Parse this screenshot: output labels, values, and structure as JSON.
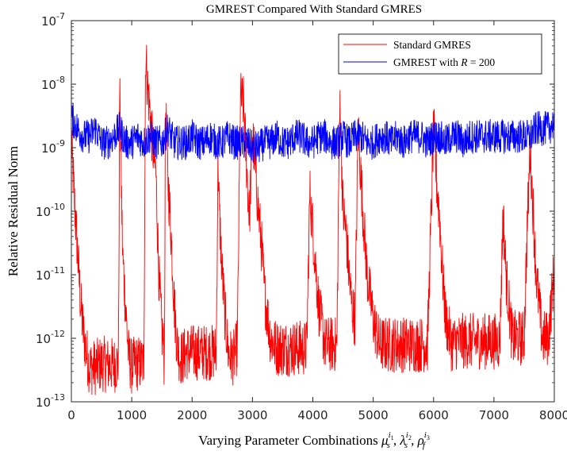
{
  "chart_data": {
    "type": "line",
    "title": "GMREST Compared With Standard GMRES",
    "xlabel": {
      "text": "Varying Parameter Combinations",
      "math": [
        {
          "base": "μ",
          "sub": "s",
          "sup": "i",
          "supsub": "1",
          "sep": ","
        },
        {
          "base": "λ",
          "sub": "s",
          "sup": "i",
          "supsub": "2",
          "sep": ","
        },
        {
          "base": "ρ",
          "sub": "f",
          "sup": "i",
          "supsub": "3",
          "sep": ""
        }
      ]
    },
    "ylabel": "Relative Residual Norm",
    "xlim": [
      0,
      8000
    ],
    "ylim_exponent": [
      -13,
      -7
    ],
    "yscale": "log",
    "grid": false,
    "legend_position": "top-right",
    "x_ticks": [
      "0",
      "1000",
      "2000",
      "3000",
      "4000",
      "5000",
      "6000",
      "7000",
      "8000"
    ],
    "x_tick_values": [
      0,
      1000,
      2000,
      3000,
      4000,
      5000,
      6000,
      7000,
      8000
    ],
    "y_ticks": [
      {
        "base": "10",
        "exp": "-13"
      },
      {
        "base": "10",
        "exp": "-12"
      },
      {
        "base": "10",
        "exp": "-11"
      },
      {
        "base": "10",
        "exp": "-10"
      },
      {
        "base": "10",
        "exp": "-9"
      },
      {
        "base": "10",
        "exp": "-8"
      },
      {
        "base": "10",
        "exp": "-7"
      }
    ],
    "y_tick_exponents": [
      -13,
      -12,
      -11,
      -10,
      -9,
      -8,
      -7
    ],
    "series": [
      {
        "name": "Standard GMRES",
        "color": "#ff0000",
        "x": [
          0,
          50,
          100,
          150,
          200,
          250,
          300,
          400,
          500,
          600,
          700,
          780,
          800,
          830,
          850,
          900,
          950,
          1000,
          1050,
          1100,
          1150,
          1200,
          1230,
          1260,
          1300,
          1350,
          1400,
          1450,
          1500,
          1520,
          1540,
          1560,
          1600,
          1650,
          1700,
          1750,
          1800,
          1850,
          1900,
          1950,
          2000,
          2100,
          2200,
          2300,
          2400,
          2430,
          2450,
          2500,
          2550,
          2600,
          2650,
          2700,
          2750,
          2800,
          2850,
          2900,
          2950,
          3000,
          3050,
          3100,
          3150,
          3200,
          3300,
          3400,
          3500,
          3600,
          3700,
          3800,
          3900,
          3950,
          4000,
          4100,
          4200,
          4300,
          4400,
          4430,
          4450,
          4500,
          4550,
          4600,
          4650,
          4700,
          4750,
          4800,
          4850,
          4900,
          5000,
          5100,
          5200,
          5300,
          5400,
          5500,
          5600,
          5700,
          5800,
          5900,
          6000,
          6020,
          6050,
          6100,
          6150,
          6200,
          6300,
          6400,
          6500,
          6600,
          6700,
          6800,
          6900,
          7000,
          7100,
          7150,
          7200,
          7300,
          7400,
          7500,
          7550,
          7600,
          7650,
          7700,
          7800,
          7900,
          8000
        ],
        "y": [
          1.2e-09,
          1.5e-10,
          2.5e-11,
          4e-12,
          1.2e-12,
          6e-13,
          3.5e-13,
          3.5e-13,
          4e-13,
          3.8e-13,
          3.8e-13,
          4e-13,
          8e-09,
          2e-10,
          2e-11,
          3e-12,
          5e-13,
          3.5e-13,
          4e-13,
          4e-13,
          4e-13,
          4e-13,
          3.5e-08,
          1e-08,
          4e-09,
          1e-09,
          4e-10,
          1e-11,
          1.2e-12,
          1e-12,
          4e-13,
          5e-09,
          3e-10,
          5e-11,
          4e-12,
          8e-13,
          5e-13,
          5e-13,
          6e-13,
          6e-13,
          6e-13,
          6e-13,
          6e-13,
          6e-13,
          6e-13,
          8e-10,
          1e-10,
          1e-11,
          2e-12,
          6e-13,
          5e-13,
          5e-13,
          8e-13,
          6e-09,
          5e-09,
          6e-10,
          8e-11,
          2e-09,
          4e-10,
          1e-10,
          3e-11,
          5e-12,
          1e-12,
          7e-13,
          7e-13,
          7e-13,
          7e-13,
          7e-13,
          7e-13,
          2e-10,
          5e-11,
          3e-12,
          8e-13,
          8e-13,
          8e-13,
          4e-10,
          6e-09,
          1e-10,
          5e-11,
          1e-11,
          3e-12,
          2e-12,
          2e-09,
          3e-10,
          5e-11,
          1e-11,
          2e-12,
          8e-13,
          8e-13,
          8e-13,
          8e-13,
          8e-13,
          8e-13,
          8e-13,
          8e-13,
          8e-13,
          2e-09,
          1e-09,
          3e-10,
          8e-11,
          1e-11,
          2e-12,
          8e-13,
          9e-13,
          9e-13,
          9e-13,
          9e-13,
          9e-13,
          9e-13,
          9e-13,
          9e-13,
          1e-10,
          1e-11,
          1e-12,
          1e-12,
          1e-12,
          5e-11,
          1e-09,
          1e-10,
          1e-11,
          1e-12,
          1e-12,
          1.2e-11
        ]
      },
      {
        "name": "GMREST with R = 200",
        "name_plain": "GMREST with",
        "name_var": "R",
        "name_rest": " = 200",
        "color": "#0000ff",
        "x": [
          0,
          100,
          200,
          300,
          400,
          500,
          600,
          700,
          800,
          900,
          1000,
          1100,
          1200,
          1300,
          1400,
          1500,
          1600,
          1700,
          1800,
          1900,
          2000,
          2100,
          2200,
          2300,
          2400,
          2500,
          2600,
          2700,
          2800,
          2900,
          3000,
          3100,
          3200,
          3300,
          3400,
          3500,
          3600,
          3700,
          3800,
          3900,
          4000,
          4100,
          4200,
          4300,
          4400,
          4500,
          4600,
          4700,
          4800,
          4900,
          5000,
          5100,
          5200,
          5300,
          5400,
          5500,
          5600,
          5700,
          5800,
          5900,
          6000,
          6100,
          6200,
          6300,
          6400,
          6500,
          6600,
          6700,
          6800,
          6900,
          7000,
          7100,
          7200,
          7300,
          7400,
          7500,
          7600,
          7700,
          7800,
          7900,
          8000
        ],
        "y": [
          3e-09,
          2e-09,
          1.5e-09,
          1.5e-09,
          2e-09,
          1.2e-09,
          1.2e-09,
          1.5e-09,
          2e-09,
          1.2e-09,
          1.2e-09,
          1.5e-09,
          1.2e-09,
          1.5e-09,
          1.2e-09,
          1.2e-09,
          2e-09,
          1.2e-09,
          1.2e-09,
          1.2e-09,
          1.5e-09,
          1.2e-09,
          1.2e-09,
          1.5e-09,
          1.2e-09,
          1.2e-09,
          1.5e-09,
          1.2e-09,
          1.2e-09,
          1.2e-09,
          1e-09,
          1e-09,
          1.2e-09,
          1.2e-09,
          1.5e-09,
          1.2e-09,
          1.2e-09,
          1.5e-09,
          1.5e-09,
          1.2e-09,
          1.2e-09,
          1.5e-09,
          1.5e-09,
          1.2e-09,
          1.2e-09,
          1.5e-09,
          1.2e-09,
          1.5e-09,
          1.5e-09,
          1.2e-09,
          1.2e-09,
          1.5e-09,
          1.5e-09,
          1.2e-09,
          1.5e-09,
          1.2e-09,
          1.5e-09,
          1.5e-09,
          1.5e-09,
          1.2e-09,
          1.5e-09,
          1.5e-09,
          1.2e-09,
          1.5e-09,
          1.5e-09,
          1.2e-09,
          1.5e-09,
          1.5e-09,
          1.5e-09,
          1.5e-09,
          1.5e-09,
          1.5e-09,
          1.5e-09,
          1.5e-09,
          1.5e-09,
          1.5e-09,
          1.5e-09,
          2e-09,
          2e-09,
          2e-09,
          2.5e-09
        ]
      }
    ]
  }
}
